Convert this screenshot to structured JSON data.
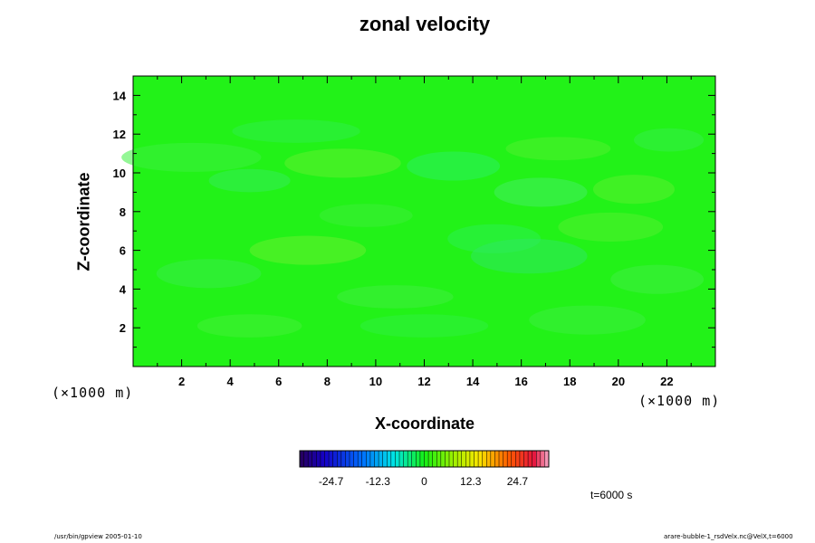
{
  "chart_data": {
    "type": "heatmap",
    "title": "zonal velocity",
    "xlabel": "X-coordinate",
    "ylabel": "Z-coordinate",
    "x_unit": "(×1000 m)",
    "z_unit": "(×1000 m)",
    "xlim": [
      0,
      24
    ],
    "ylim": [
      0,
      15
    ],
    "x_ticks": [
      2,
      4,
      6,
      8,
      10,
      12,
      14,
      16,
      18,
      20,
      22
    ],
    "y_ticks": [
      2,
      4,
      6,
      8,
      10,
      12,
      14
    ],
    "colorbar": {
      "range": [
        -33,
        33
      ],
      "ticks": [
        "-24.7",
        "-12.3",
        "0",
        "12.3",
        "24.7"
      ],
      "colormap": "rainbow"
    },
    "time_label": "t=6000 s",
    "field_range_approx": [
      -2,
      6
    ]
  },
  "footer": {
    "left": "/usr/bin/gpview 2005-01-10",
    "right": "arare-bubble-1_rsdVelx.nc@VelX,t=6000"
  }
}
